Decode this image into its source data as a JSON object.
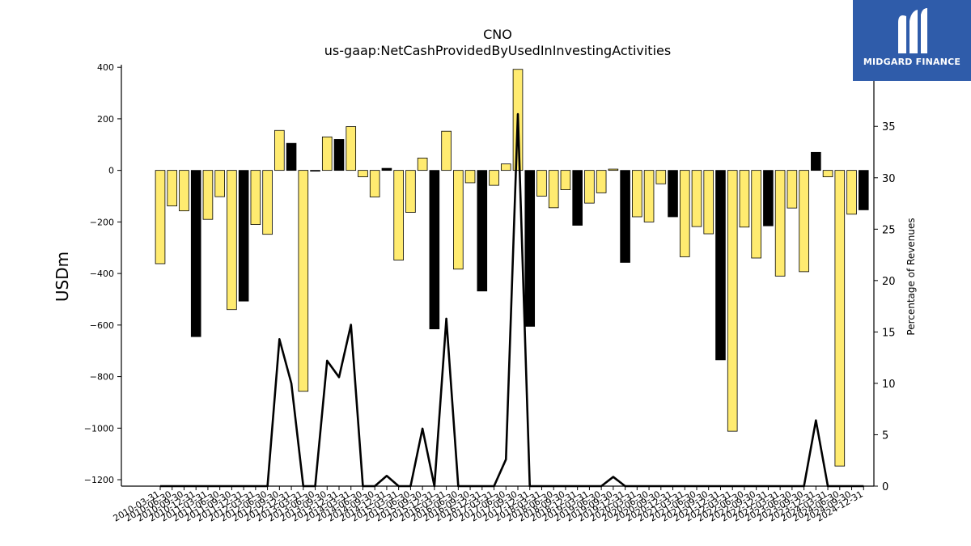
{
  "chart_data": {
    "type": "bar",
    "title": "CNO",
    "subtitle": "us-gaap:NetCashProvidedByUsedInInvestingActivities",
    "ylabel": "USDm",
    "ylabel_right": "Percentage of Revenues",
    "ylim": [
      -1225,
      410
    ],
    "ylim_right": [
      0,
      41
    ],
    "yticks": [
      -1200,
      -1000,
      -800,
      -600,
      -400,
      -200,
      0,
      200,
      400
    ],
    "yticks_right": [
      0,
      5,
      10,
      15,
      20,
      25,
      30,
      35
    ],
    "categories": [
      "2010-03-31",
      "2010-06-30",
      "2010-09-30",
      "2010-12-31",
      "2011-03-31",
      "2011-06-30",
      "2011-09-30",
      "2011-12-31",
      "2012-03-31",
      "2012-06-30",
      "2012-09-30",
      "2012-12-31",
      "2013-03-31",
      "2013-06-30",
      "2013-09-30",
      "2013-12-31",
      "2014-03-31",
      "2014-06-30",
      "2014-09-30",
      "2014-12-31",
      "2015-03-31",
      "2015-06-30",
      "2015-09-30",
      "2015-12-31",
      "2016-03-31",
      "2016-06-30",
      "2016-09-30",
      "2016-12-31",
      "2017-03-31",
      "2017-06-30",
      "2017-09-30",
      "2017-12-31",
      "2018-03-31",
      "2018-06-30",
      "2018-09-30",
      "2018-12-31",
      "2019-03-31",
      "2019-06-30",
      "2019-09-30",
      "2019-12-31",
      "2020-03-31",
      "2020-06-30",
      "2020-09-30",
      "2020-12-31",
      "2021-03-31",
      "2021-06-30",
      "2021-09-30",
      "2021-12-31",
      "2022-03-31",
      "2022-06-30",
      "2022-09-30",
      "2022-12-31",
      "2023-03-31",
      "2023-06-30",
      "2023-09-30",
      "2023-12-31",
      "2024-03-31",
      "2024-06-30",
      "2024-09-30",
      "2024-12-31"
    ],
    "series": [
      {
        "type": "bar",
        "values": [
          -362,
          -138,
          -157,
          -645,
          -190,
          -102,
          -540,
          -507,
          -210,
          -248,
          155,
          105,
          -857,
          -3,
          130,
          120,
          170,
          -25,
          -103,
          8,
          -348,
          -163,
          48,
          -615,
          152,
          -383,
          -48,
          -468,
          -58,
          25,
          392,
          -605,
          -100,
          -145,
          -75,
          -213,
          -127,
          -87,
          5,
          -357,
          -180,
          -200,
          -52,
          -180,
          -335,
          -218,
          -246,
          -735,
          -1012,
          -220,
          -340,
          -215,
          -410,
          -146,
          -393,
          70,
          -25,
          -1147,
          -170,
          -153
        ],
        "bar_colors": [
          "#ffeb70",
          "#ffeb70",
          "#ffeb70",
          "#000000",
          "#ffeb70",
          "#ffeb70",
          "#ffeb70",
          "#000000",
          "#ffeb70",
          "#ffeb70",
          "#ffeb70",
          "#000000",
          "#ffeb70",
          "#000000",
          "#ffeb70",
          "#000000",
          "#ffeb70",
          "#ffeb70",
          "#ffeb70",
          "#000000",
          "#ffeb70",
          "#ffeb70",
          "#ffeb70",
          "#000000",
          "#ffeb70",
          "#ffeb70",
          "#ffeb70",
          "#000000",
          "#ffeb70",
          "#ffeb70",
          "#ffeb70",
          "#000000",
          "#ffeb70",
          "#ffeb70",
          "#ffeb70",
          "#000000",
          "#ffeb70",
          "#ffeb70",
          "#ffeb70",
          "#000000",
          "#ffeb70",
          "#ffeb70",
          "#ffeb70",
          "#000000",
          "#ffeb70",
          "#ffeb70",
          "#ffeb70",
          "#000000",
          "#ffeb70",
          "#ffeb70",
          "#ffeb70",
          "#000000",
          "#ffeb70",
          "#ffeb70",
          "#ffeb70",
          "#000000",
          "#ffeb70",
          "#ffeb70",
          "#ffeb70",
          "#000000"
        ]
      },
      {
        "type": "line",
        "axis": "right",
        "color": "#000000",
        "values": [
          0,
          0,
          0,
          0,
          0,
          0,
          0,
          0,
          0,
          0,
          14.3,
          10,
          0,
          0,
          12.2,
          10.6,
          15.7,
          0,
          0,
          1,
          0,
          0,
          5.6,
          0,
          16.3,
          0,
          0,
          0,
          0,
          2.6,
          36.2,
          0,
          0,
          0,
          0,
          0,
          0,
          0,
          0.9,
          0,
          0,
          0,
          0,
          0,
          0,
          0,
          0,
          0,
          0,
          0,
          0,
          0,
          0,
          0,
          0,
          6.4,
          0,
          0,
          0,
          0
        ]
      }
    ]
  },
  "logo": {
    "text": "MIDGARD FINANCE"
  },
  "colors": {
    "bar_yellow": "#ffeb70",
    "bar_black": "#000000",
    "logo_bg": "#2f5caa"
  }
}
